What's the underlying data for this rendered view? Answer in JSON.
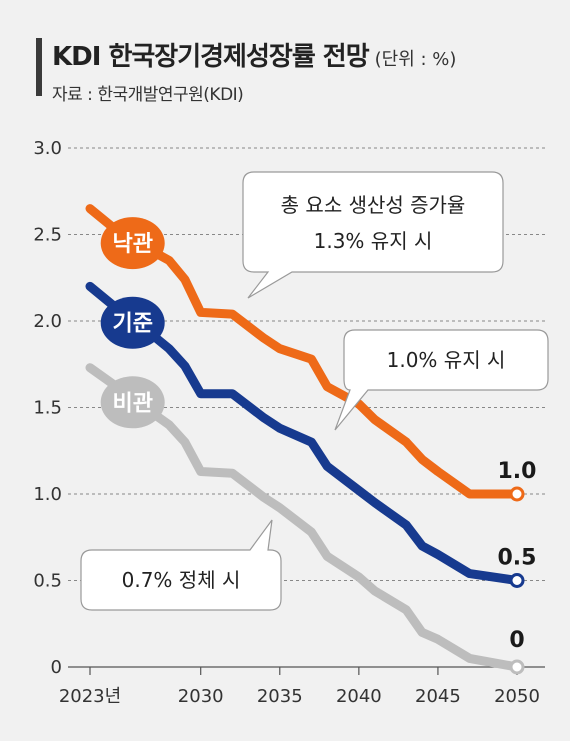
{
  "header": {
    "title": "KDI 한국장기경제성장률 전망",
    "unit": "(단위 : %)",
    "source": "자료 : 한국개발연구원(KDI)"
  },
  "colors": {
    "optimistic": "#ee6a18",
    "baseline": "#173a8f",
    "pessimistic": "#bdbdbd",
    "grid": "#888888",
    "background": "#f1f1f1"
  },
  "callouts": {
    "optimistic_line1": "총 요소 생산성 증가율",
    "optimistic_line2": "1.3% 유지 시",
    "baseline": "1.0% 유지 시",
    "pessimistic": "0.7% 정체 시"
  },
  "chart_data": {
    "type": "line",
    "title": "KDI 한국장기경제성장률 전망",
    "ylim": [
      0,
      3.0
    ],
    "xlim": [
      2023,
      2050
    ],
    "yticks": [
      "0",
      "0.5",
      "1.0",
      "1.5",
      "2.0",
      "2.5",
      "3.0"
    ],
    "xticks": [
      "2023년",
      "2030",
      "2035",
      "2040",
      "2045",
      "2050"
    ],
    "grid": true,
    "series": [
      {
        "name": "낙관",
        "key": "optimistic",
        "x": [
          2023,
          2025,
          2026,
          2028,
          2029,
          2030,
          2032,
          2034,
          2035,
          2037,
          2038,
          2040,
          2041,
          2043,
          2044,
          2045,
          2047,
          2050
        ],
        "values": [
          2.65,
          2.5,
          2.45,
          2.35,
          2.24,
          2.05,
          2.04,
          1.9,
          1.84,
          1.78,
          1.62,
          1.52,
          1.43,
          1.3,
          1.2,
          1.13,
          1.0,
          1.0
        ],
        "end_label": "1.0"
      },
      {
        "name": "기준",
        "key": "baseline",
        "x": [
          2023,
          2025,
          2026,
          2028,
          2029,
          2030,
          2032,
          2034,
          2035,
          2037,
          2038,
          2040,
          2041,
          2043,
          2044,
          2045,
          2047,
          2050
        ],
        "values": [
          2.2,
          2.05,
          1.99,
          1.84,
          1.74,
          1.58,
          1.58,
          1.44,
          1.38,
          1.3,
          1.16,
          1.02,
          0.95,
          0.82,
          0.7,
          0.65,
          0.54,
          0.5
        ],
        "end_label": "0.5"
      },
      {
        "name": "비관",
        "key": "pessimistic",
        "x": [
          2023,
          2025,
          2026,
          2028,
          2029,
          2030,
          2032,
          2034,
          2035,
          2037,
          2038,
          2040,
          2041,
          2043,
          2044,
          2045,
          2047,
          2050
        ],
        "values": [
          1.73,
          1.6,
          1.53,
          1.4,
          1.3,
          1.13,
          1.12,
          0.98,
          0.92,
          0.78,
          0.64,
          0.52,
          0.44,
          0.33,
          0.2,
          0.16,
          0.05,
          0.0
        ],
        "end_label": "0"
      }
    ]
  }
}
